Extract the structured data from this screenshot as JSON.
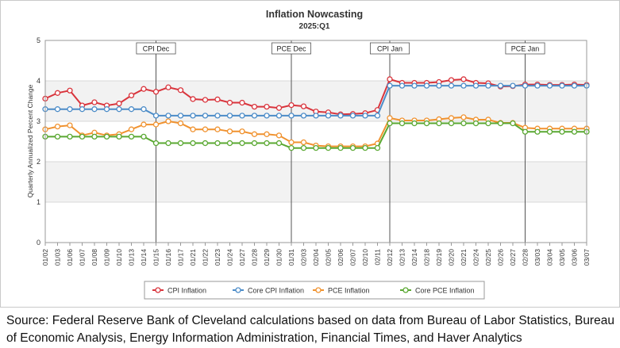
{
  "chart_data": {
    "type": "line",
    "title": "Inflation Nowcasting",
    "subtitle": "2025:Q1",
    "xlabel": "",
    "ylabel": "Quarterly Annualized Percent Change",
    "ylim": [
      0,
      5
    ],
    "yticks": [
      0,
      1,
      2,
      3,
      4,
      5
    ],
    "grid": true,
    "legend": "bottom",
    "x": [
      "01/02",
      "01/03",
      "01/06",
      "01/07",
      "01/08",
      "01/09",
      "01/10",
      "01/13",
      "01/14",
      "01/15",
      "01/16",
      "01/17",
      "01/21",
      "01/22",
      "01/23",
      "01/24",
      "01/27",
      "01/28",
      "01/29",
      "01/30",
      "01/31",
      "02/03",
      "02/04",
      "02/05",
      "02/06",
      "02/07",
      "02/10",
      "02/11",
      "02/12",
      "02/13",
      "02/14",
      "02/18",
      "02/19",
      "02/20",
      "02/21",
      "02/24",
      "02/25",
      "02/26",
      "02/27",
      "02/28",
      "03/03",
      "03/04",
      "03/05",
      "03/06",
      "03/07"
    ],
    "series": [
      {
        "name": "CPI Inflation",
        "color": "#d9343c",
        "values": [
          3.56,
          3.7,
          3.76,
          3.39,
          3.47,
          3.39,
          3.44,
          3.64,
          3.8,
          3.73,
          3.84,
          3.77,
          3.55,
          3.53,
          3.54,
          3.46,
          3.46,
          3.36,
          3.36,
          3.33,
          3.4,
          3.37,
          3.24,
          3.22,
          3.17,
          3.18,
          3.2,
          3.28,
          4.04,
          3.95,
          3.95,
          3.95,
          3.97,
          4.02,
          4.04,
          3.95,
          3.94,
          3.86,
          3.87,
          3.91,
          3.91,
          3.9,
          3.9,
          3.91,
          3.9
        ]
      },
      {
        "name": "Core CPI Inflation",
        "color": "#4c8cc8",
        "values": [
          3.3,
          3.3,
          3.3,
          3.3,
          3.3,
          3.3,
          3.3,
          3.3,
          3.3,
          3.14,
          3.14,
          3.14,
          3.14,
          3.14,
          3.14,
          3.14,
          3.14,
          3.14,
          3.14,
          3.14,
          3.14,
          3.14,
          3.14,
          3.14,
          3.14,
          3.14,
          3.14,
          3.14,
          3.88,
          3.88,
          3.88,
          3.88,
          3.88,
          3.88,
          3.88,
          3.88,
          3.88,
          3.88,
          3.88,
          3.88,
          3.88,
          3.88,
          3.88,
          3.88,
          3.88
        ]
      },
      {
        "name": "PCE Inflation",
        "color": "#f0922f",
        "values": [
          2.8,
          2.87,
          2.9,
          2.65,
          2.72,
          2.65,
          2.68,
          2.8,
          2.92,
          2.92,
          3.0,
          2.95,
          2.8,
          2.8,
          2.8,
          2.75,
          2.75,
          2.68,
          2.68,
          2.65,
          2.48,
          2.48,
          2.4,
          2.38,
          2.38,
          2.38,
          2.38,
          2.45,
          3.08,
          3.02,
          3.02,
          3.02,
          3.05,
          3.08,
          3.1,
          3.04,
          3.04,
          2.96,
          2.96,
          2.84,
          2.82,
          2.82,
          2.82,
          2.82,
          2.82
        ]
      },
      {
        "name": "Core PCE Inflation",
        "color": "#5aa832",
        "values": [
          2.62,
          2.62,
          2.62,
          2.62,
          2.62,
          2.62,
          2.62,
          2.62,
          2.62,
          2.46,
          2.46,
          2.46,
          2.46,
          2.46,
          2.46,
          2.46,
          2.46,
          2.46,
          2.46,
          2.46,
          2.34,
          2.34,
          2.34,
          2.34,
          2.34,
          2.34,
          2.34,
          2.34,
          2.95,
          2.95,
          2.95,
          2.95,
          2.95,
          2.95,
          2.95,
          2.95,
          2.95,
          2.95,
          2.95,
          2.74,
          2.74,
          2.74,
          2.74,
          2.74,
          2.74
        ]
      }
    ],
    "annotations": [
      {
        "label": "CPI Dec",
        "at": "01/15"
      },
      {
        "label": "PCE Dec",
        "at": "01/31"
      },
      {
        "label": "CPI Jan",
        "at": "02/12"
      },
      {
        "label": "PCE Jan",
        "at": "02/28"
      }
    ]
  },
  "source_text": "Source: Federal Reserve Bank of Cleveland calculations based on data from Bureau of Labor Statistics, Bureau of Economic Analysis, Energy Information Administration, Financial Times, and Haver Analytics"
}
